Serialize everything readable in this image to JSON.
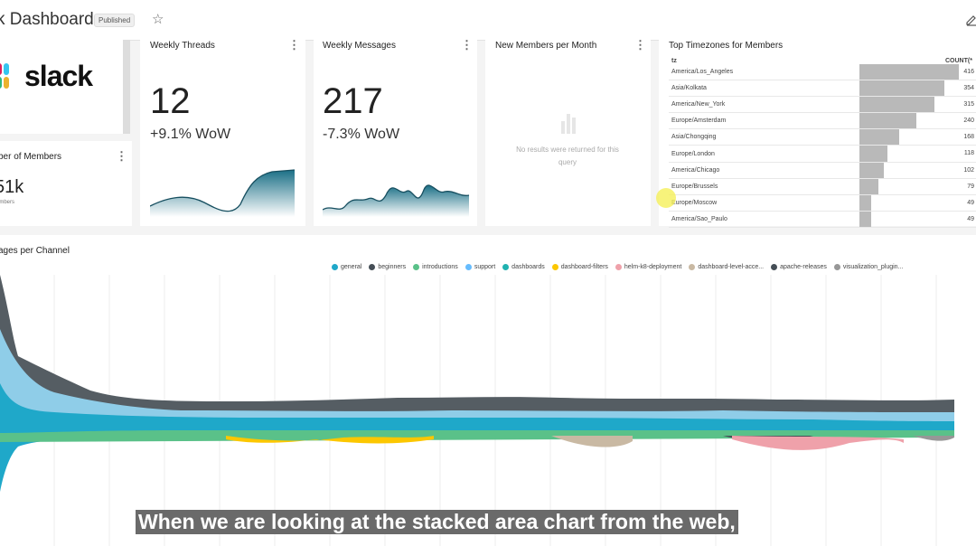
{
  "header": {
    "title": "k Dashboard",
    "badge": "Published"
  },
  "cards": {
    "members": {
      "title": "ber of Members",
      "value": "51k",
      "sub": "embers"
    },
    "threads": {
      "title": "Weekly Threads",
      "value": "12",
      "wow": "+9.1% WoW"
    },
    "messages": {
      "title": "Weekly Messages",
      "value": "217",
      "wow": "-7.3% WoW"
    },
    "newmembers": {
      "title": "New Members per Month",
      "empty": "No results were returned for this query"
    },
    "timezones": {
      "title": "Top Timezones for Members",
      "col_tz": "tz",
      "col_count": "COUNT(*",
      "rows": [
        {
          "tz": "America/Los_Angeles",
          "count": 416
        },
        {
          "tz": "Asia/Kolkata",
          "count": 354
        },
        {
          "tz": "America/New_York",
          "count": 315
        },
        {
          "tz": "Europe/Amsterdam",
          "count": 240
        },
        {
          "tz": "Asia/Chongqing",
          "count": 168
        },
        {
          "tz": "Europe/London",
          "count": 118
        },
        {
          "tz": "America/Chicago",
          "count": 102
        },
        {
          "tz": "Europe/Brussels",
          "count": 79
        },
        {
          "tz": "Europe/Moscow",
          "count": 49
        },
        {
          "tz": "America/Sao_Paulo",
          "count": 49
        }
      ]
    }
  },
  "channel_chart": {
    "title": "ages per Channel",
    "legend": [
      {
        "name": "general",
        "color": "#1fa8c9"
      },
      {
        "name": "beginners",
        "color": "#454e56"
      },
      {
        "name": "introductions",
        "color": "#5ac189"
      },
      {
        "name": "support",
        "color": "#66bcfe"
      },
      {
        "name": "dashboards",
        "color": "#20b2b0"
      },
      {
        "name": "dashboard-filters",
        "color": "#fcc700"
      },
      {
        "name": "helm-k8-deployment",
        "color": "#efa1aa"
      },
      {
        "name": "dashboard-level-acce...",
        "color": "#c9b9a3"
      },
      {
        "name": "apache-releases",
        "color": "#454e56"
      },
      {
        "name": "visualization_plugin...",
        "color": "#979797"
      }
    ]
  },
  "subtitle": "When we are looking at the stacked area chart from the web,",
  "colors": {
    "accent": "#1a85a0",
    "bar": "#b9b9b9"
  }
}
